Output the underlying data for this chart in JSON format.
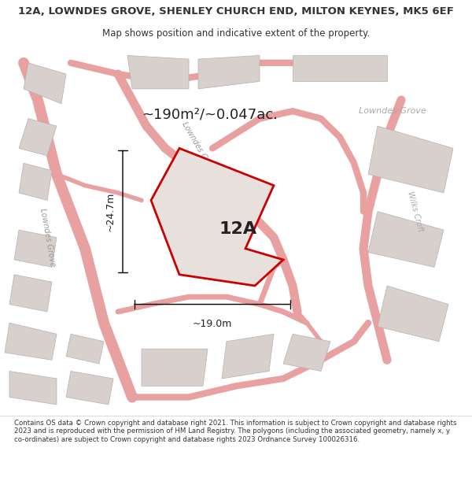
{
  "title": "12A, LOWNDES GROVE, SHENLEY CHURCH END, MILTON KEYNES, MK5 6EF",
  "subtitle": "Map shows position and indicative extent of the property.",
  "area_label": "~190m²/~0.047ac.",
  "property_label": "12A",
  "dim_h": "~24.7m",
  "dim_w": "~19.0m",
  "street_labels": [
    "Lowndes Grove",
    "Lowndes Grove",
    "Wilks Croft"
  ],
  "footnote": "Contains OS data © Crown copyright and database right 2021. This information is subject to Crown copyright and database rights 2023 and is reproduced with the permission of HM Land Registry. The polygons (including the associated geometry, namely x, y co-ordinates) are subject to Crown copyright and database rights 2023 Ordnance Survey 100026316.",
  "bg_color": "#f5f0ee",
  "map_bg": "#f5f0ee",
  "road_color": "#e8a0a0",
  "building_color": "#d8d0cc",
  "property_fill": "#e8e0dc",
  "property_edge": "#cc0000",
  "text_color": "#333333",
  "street_text_color": "#888888",
  "figsize": [
    6.0,
    6.25
  ],
  "dpi": 100
}
